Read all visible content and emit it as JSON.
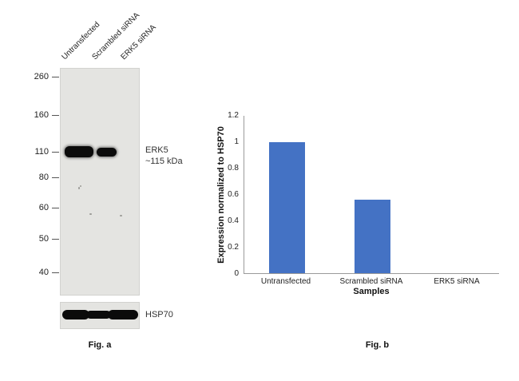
{
  "panel_a": {
    "caption": "Fig. a",
    "lane_labels": [
      "Untransfected",
      "Scrambled siRNA",
      "ERK5 siRNA"
    ],
    "mw_markers": [
      "260",
      "160",
      "110",
      "80",
      "60",
      "50",
      "40"
    ],
    "band_annotation": {
      "protein": "ERK5",
      "mw": "~115 kDa"
    },
    "loading_control": "HSP70"
  },
  "panel_b": {
    "caption": "Fig. b"
  },
  "chart_data": {
    "type": "bar",
    "title": "",
    "categories": [
      "Untransfected",
      "Scrambled siRNA",
      "ERK5 siRNA"
    ],
    "values": [
      1,
      0.56,
      0
    ],
    "xlabel": "Samples",
    "ylabel": "Expression normalized to HSP70",
    "ylim": [
      0,
      1.2
    ],
    "yticks": [
      0,
      0.2,
      0.4,
      0.6,
      0.8,
      1,
      1.2
    ],
    "bar_color": "#4472c4",
    "grid": false,
    "legend": "none"
  }
}
